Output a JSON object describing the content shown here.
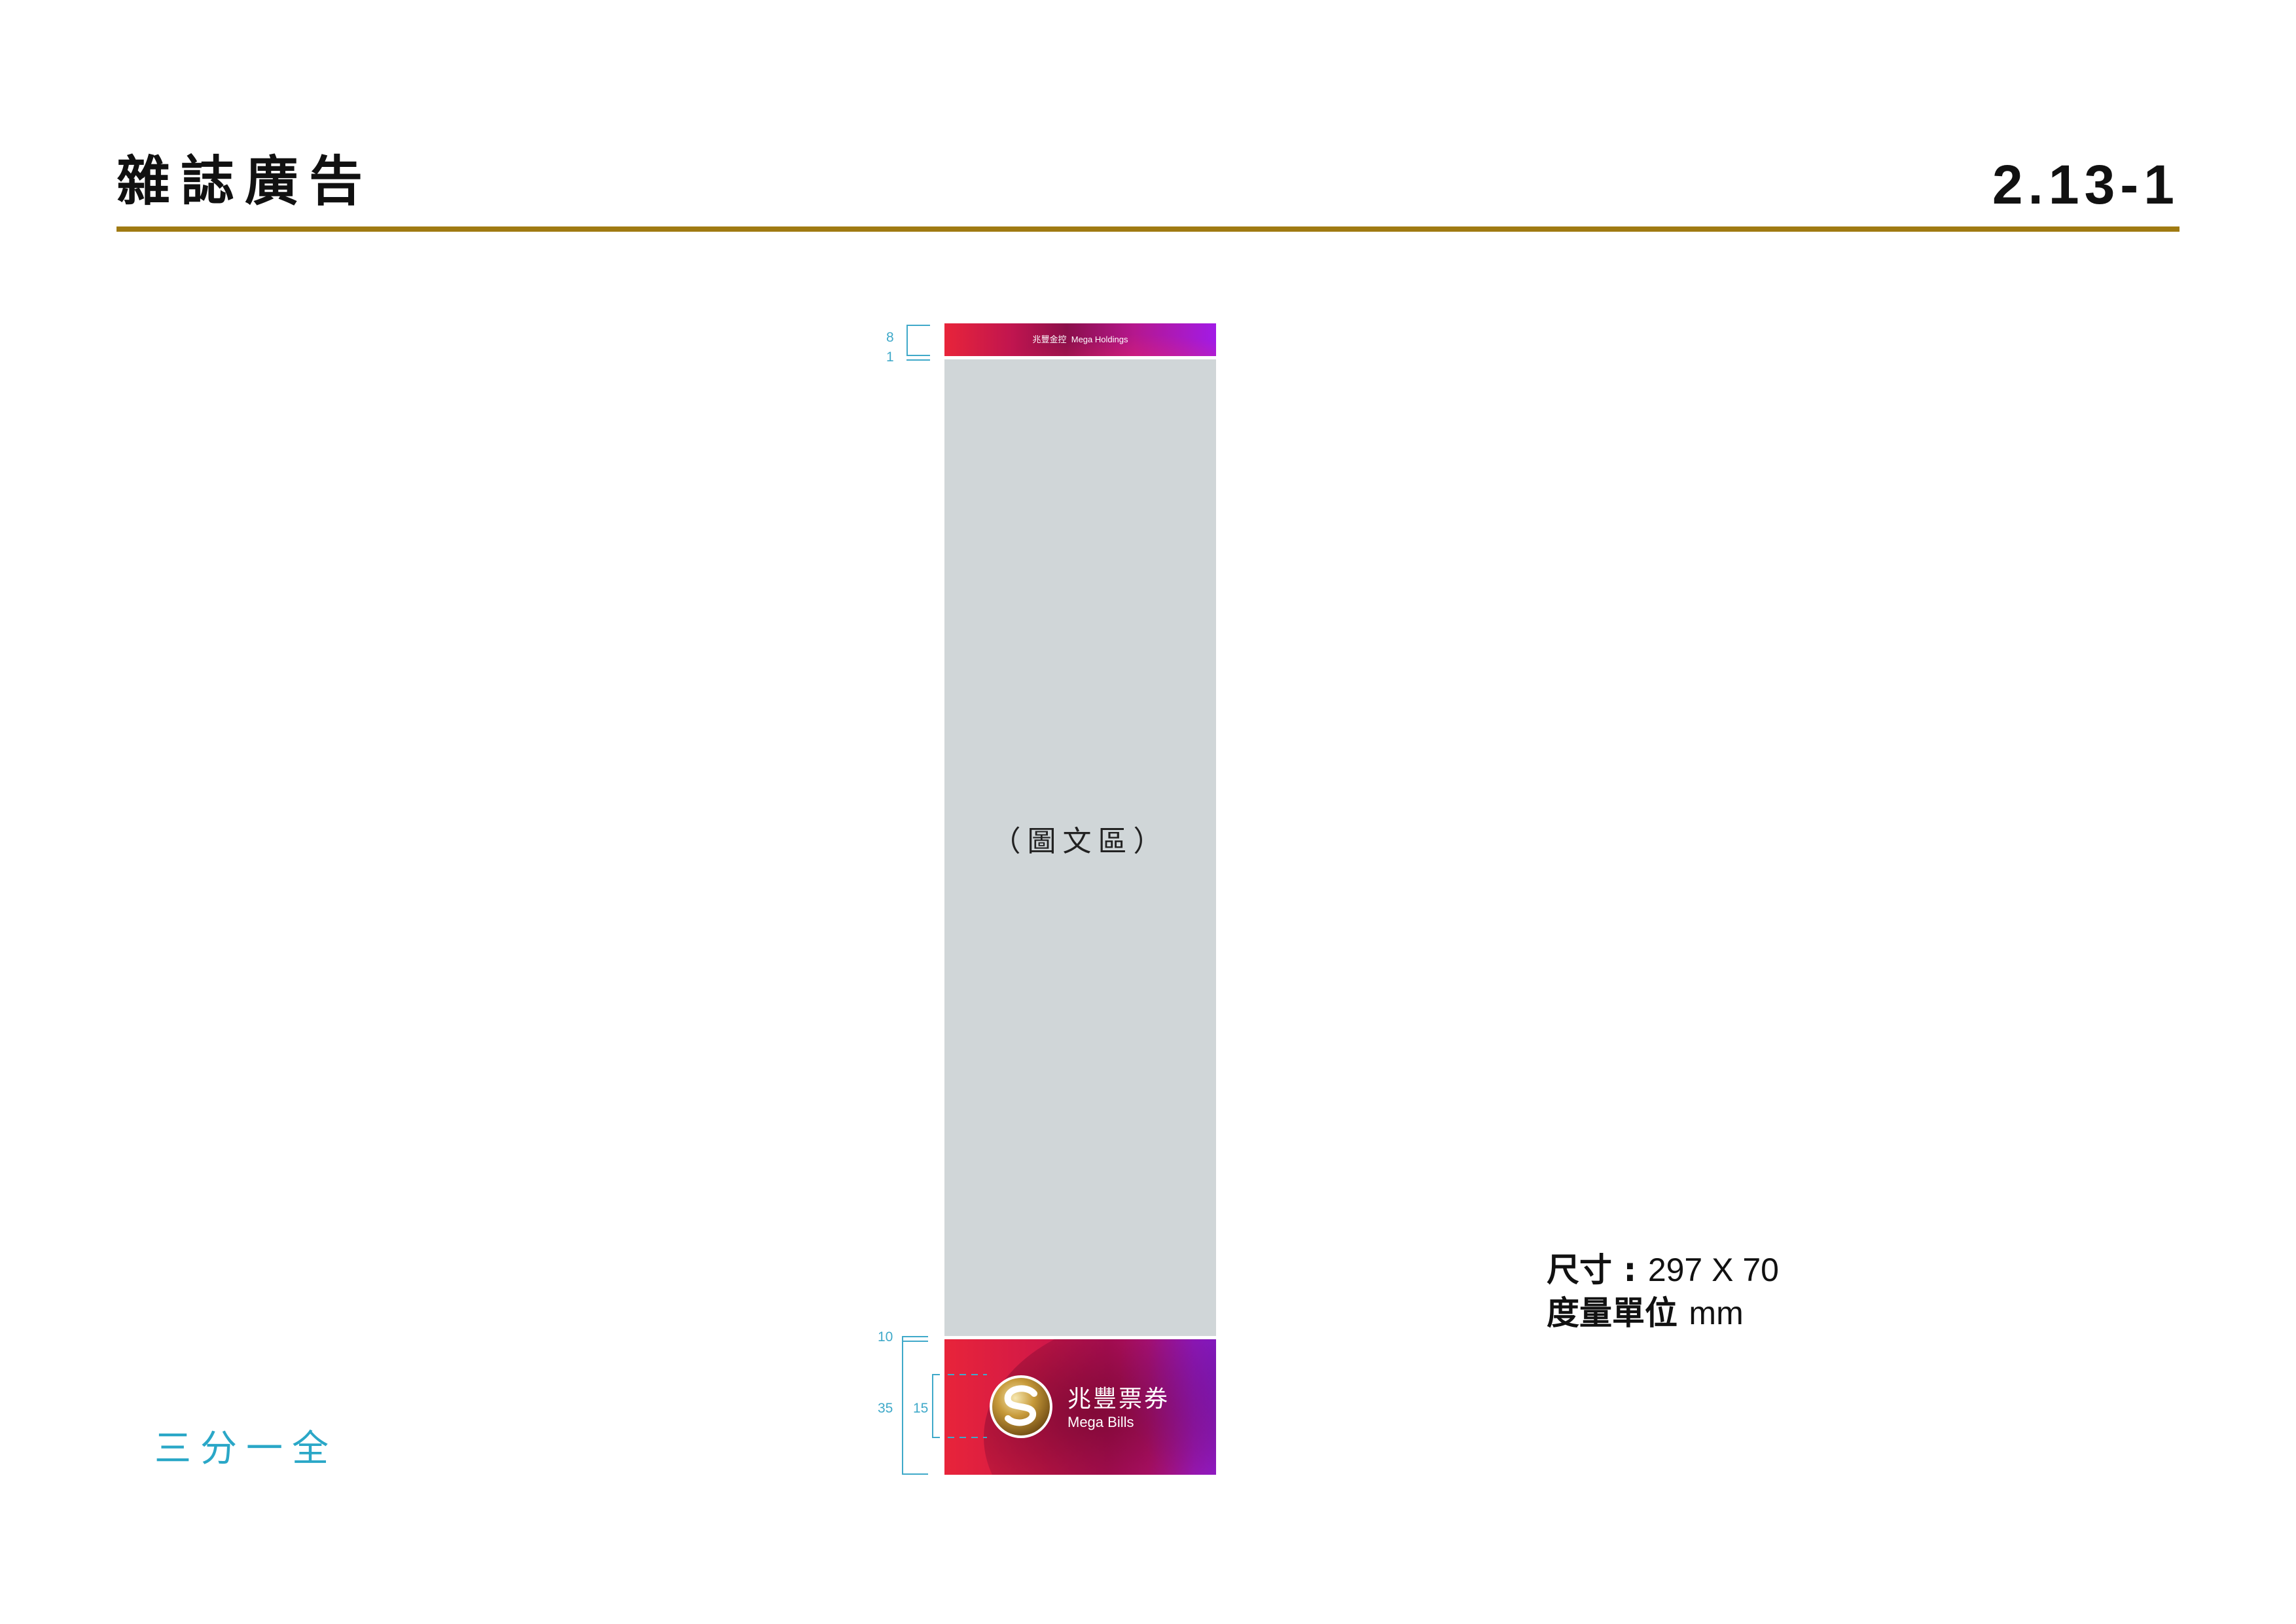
{
  "header": {
    "title": "雜誌廣告",
    "page_number": "2.13-1"
  },
  "ad": {
    "top_banner_text": "兆豐金控  Mega Holdings",
    "content_area_label": "（圖文區）",
    "brand": {
      "name_cn": "兆豐票券",
      "name_en": "Mega Bills",
      "logo_icon": "mega-s-emblem-icon"
    }
  },
  "dimensions": {
    "top_banner_height": "8",
    "top_gap": "1",
    "footer_gap": "10",
    "footer_height": "35",
    "logo_height": "15"
  },
  "specs": {
    "size_label": "尺寸 : ",
    "size_value": "297 X 70",
    "unit_label": "度量單位 ",
    "unit_value": "mm"
  },
  "format_label": "三分一全",
  "colors": {
    "header_rule": "#a07a12",
    "dimension_cyan": "#3fa9c9",
    "brand_red": "#e8243a",
    "brand_purple": "#9a20ee",
    "placeholder_gray": "#d0d6d8"
  }
}
